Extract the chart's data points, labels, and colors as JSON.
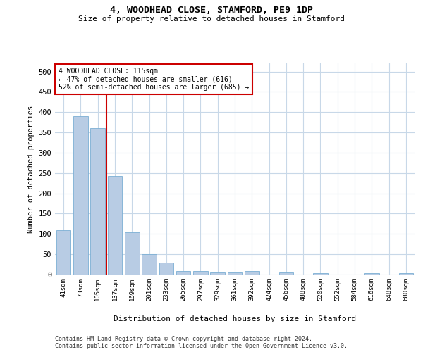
{
  "title1": "4, WOODHEAD CLOSE, STAMFORD, PE9 1DP",
  "title2": "Size of property relative to detached houses in Stamford",
  "xlabel": "Distribution of detached houses by size in Stamford",
  "ylabel": "Number of detached properties",
  "categories": [
    "41sqm",
    "73sqm",
    "105sqm",
    "137sqm",
    "169sqm",
    "201sqm",
    "233sqm",
    "265sqm",
    "297sqm",
    "329sqm",
    "361sqm",
    "392sqm",
    "424sqm",
    "456sqm",
    "488sqm",
    "520sqm",
    "552sqm",
    "584sqm",
    "616sqm",
    "648sqm",
    "680sqm"
  ],
  "values": [
    110,
    390,
    360,
    243,
    104,
    50,
    29,
    9,
    8,
    5,
    6,
    8,
    0,
    5,
    0,
    4,
    0,
    0,
    4,
    0,
    3
  ],
  "bar_color": "#b8cce4",
  "bar_edge_color": "#7bafd4",
  "red_line_x": 2.5,
  "annotation_text": "4 WOODHEAD CLOSE: 115sqm\n← 47% of detached houses are smaller (616)\n52% of semi-detached houses are larger (685) →",
  "annotation_box_color": "#ffffff",
  "annotation_box_edge_color": "#cc0000",
  "ylim": [
    0,
    520
  ],
  "yticks": [
    0,
    50,
    100,
    150,
    200,
    250,
    300,
    350,
    400,
    450,
    500
  ],
  "footer1": "Contains HM Land Registry data © Crown copyright and database right 2024.",
  "footer2": "Contains public sector information licensed under the Open Government Licence v3.0.",
  "bg_color": "#ffffff",
  "grid_color": "#c8d8e8"
}
